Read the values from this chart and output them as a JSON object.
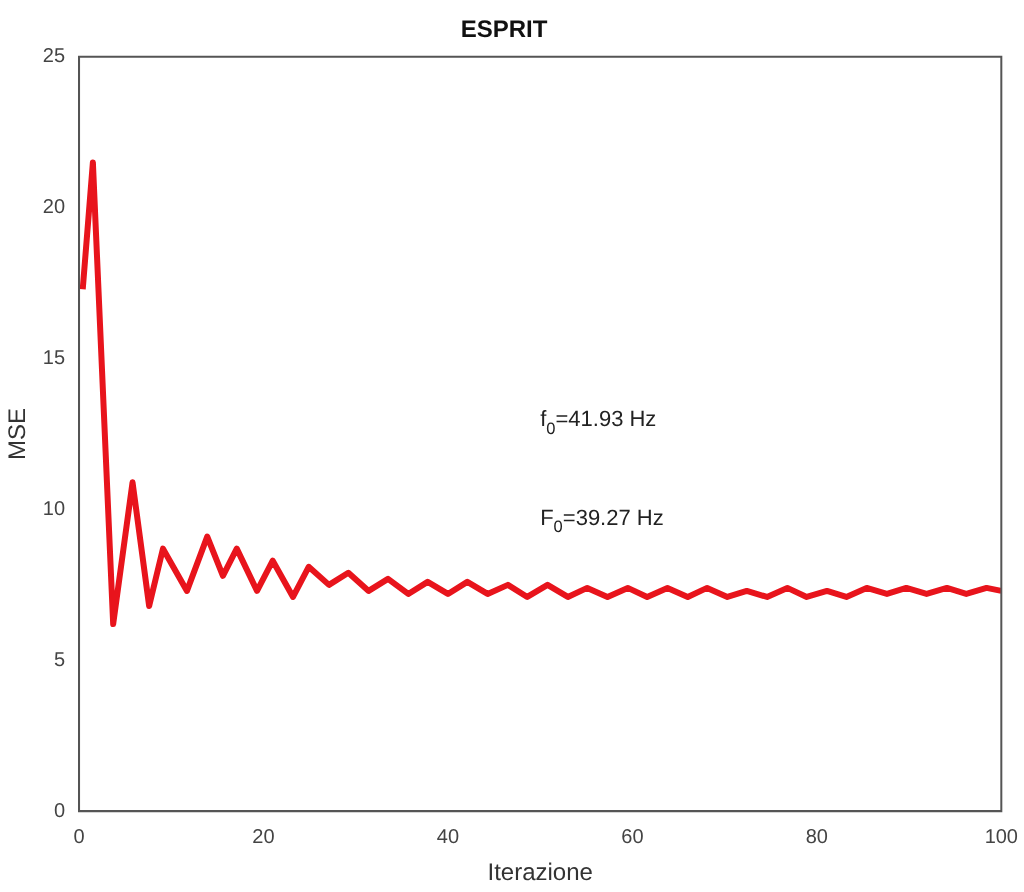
{
  "chart_data": {
    "type": "line",
    "title": "ESPRIT",
    "xlabel": "Iterazione",
    "ylabel": "MSE",
    "annotations": [
      "f$_{0}$=41.93 Hz",
      "F$_{0}$=39.27 Hz"
    ],
    "xlim": [
      0,
      100
    ],
    "xticks": [
      0,
      20,
      40,
      60,
      80,
      100
    ],
    "ylim": [
      0,
      25
    ],
    "yticks": [
      0,
      5,
      10,
      15,
      20,
      25
    ],
    "grid": false,
    "legend": false,
    "marker": "none",
    "line_style": "solid",
    "series": [
      {
        "color": "#e8141c",
        "x": [
          0.4,
          1.5,
          3.7,
          5.8,
          7.6,
          9.1,
          11.7,
          13.9,
          15.6,
          17.1,
          19.3,
          21.0,
          23.2,
          24.9,
          27.1,
          29.2,
          31.4,
          33.5,
          35.7,
          37.8,
          40.0,
          42.1,
          44.3,
          46.5,
          48.6,
          50.8,
          53.0,
          55.1,
          57.3,
          59.5,
          61.6,
          63.8,
          66.0,
          68.1,
          70.3,
          72.4,
          74.6,
          76.8,
          78.9,
          81.1,
          83.2,
          85.4,
          87.6,
          89.7,
          91.9,
          94.1,
          96.2,
          98.4,
          100
        ],
        "values": [
          17.3,
          21.5,
          6.2,
          10.9,
          6.8,
          8.7,
          7.3,
          9.1,
          7.8,
          8.7,
          7.3,
          8.3,
          7.1,
          8.1,
          7.5,
          7.9,
          7.3,
          7.7,
          7.2,
          7.6,
          7.2,
          7.6,
          7.2,
          7.5,
          7.1,
          7.5,
          7.1,
          7.4,
          7.1,
          7.4,
          7.1,
          7.4,
          7.1,
          7.4,
          7.1,
          7.3,
          7.1,
          7.4,
          7.1,
          7.3,
          7.1,
          7.4,
          7.2,
          7.4,
          7.2,
          7.4,
          7.2,
          7.4,
          7.3
        ]
      }
    ]
  }
}
